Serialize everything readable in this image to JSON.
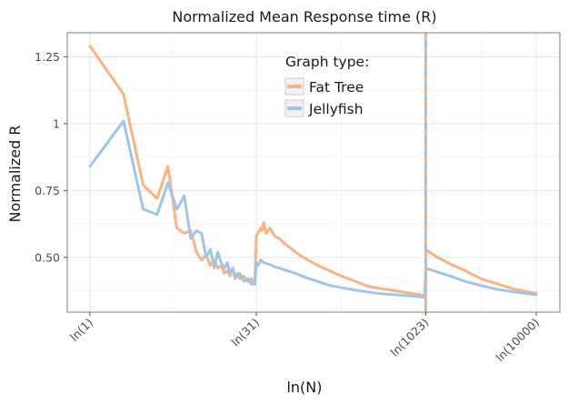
{
  "chart_data": {
    "type": "line",
    "title": "Normalized Mean Response time (R)",
    "xlabel": "ln(N)",
    "ylabel": "Normalized R",
    "x_scale": "log",
    "xlim": [
      1,
      10000
    ],
    "ylim": [
      0.295,
      1.34
    ],
    "x_ticks": [
      {
        "value": 1,
        "label": "ln(1)"
      },
      {
        "value": 31,
        "label": "ln(31)"
      },
      {
        "value": 1023,
        "label": "ln(1023)"
      },
      {
        "value": 10000,
        "label": "ln(10000)"
      }
    ],
    "y_ticks": [
      {
        "value": 0.5,
        "label": "0.50"
      },
      {
        "value": 0.75,
        "label": "0.75"
      },
      {
        "value": 1,
        "label": "1"
      },
      {
        "value": 1.25,
        "label": "1.25"
      }
    ],
    "grid": true,
    "legend": {
      "title": "Graph type:",
      "position": "top-center-inside"
    },
    "series": [
      {
        "name": "Fat Tree",
        "color": "#fcb380",
        "points": [
          [
            1,
            1.29
          ],
          [
            2,
            1.11
          ],
          [
            3,
            0.77
          ],
          [
            4,
            0.72
          ],
          [
            5,
            0.84
          ],
          [
            6,
            0.61
          ],
          [
            7,
            0.59
          ],
          [
            8,
            0.6
          ],
          [
            9,
            0.52
          ],
          [
            10,
            0.49
          ],
          [
            11,
            0.51
          ],
          [
            12,
            0.47
          ],
          [
            13,
            0.49
          ],
          [
            14,
            0.46
          ],
          [
            15,
            0.47
          ],
          [
            16,
            0.44
          ],
          [
            17,
            0.45
          ],
          [
            18,
            0.43
          ],
          [
            19,
            0.46
          ],
          [
            20,
            0.43
          ],
          [
            21,
            0.44
          ],
          [
            22,
            0.42
          ],
          [
            24,
            0.43
          ],
          [
            26,
            0.41
          ],
          [
            28,
            0.42
          ],
          [
            30,
            0.4
          ],
          [
            31,
            0.58
          ],
          [
            32,
            0.59
          ],
          [
            34,
            0.61
          ],
          [
            35,
            0.6
          ],
          [
            36,
            0.63
          ],
          [
            38,
            0.59
          ],
          [
            41,
            0.61
          ],
          [
            45,
            0.58
          ],
          [
            50,
            0.57
          ],
          [
            56,
            0.55
          ],
          [
            65,
            0.53
          ],
          [
            75,
            0.51
          ],
          [
            90,
            0.49
          ],
          [
            110,
            0.47
          ],
          [
            140,
            0.45
          ],
          [
            180,
            0.43
          ],
          [
            240,
            0.41
          ],
          [
            320,
            0.39
          ],
          [
            450,
            0.38
          ],
          [
            650,
            0.37
          ],
          [
            900,
            0.36
          ],
          [
            1020,
            0.355
          ],
          [
            1023,
            0.53
          ],
          [
            1100,
            0.52
          ],
          [
            1300,
            0.5
          ],
          [
            1700,
            0.475
          ],
          [
            2300,
            0.45
          ],
          [
            3200,
            0.42
          ],
          [
            4500,
            0.4
          ],
          [
            6500,
            0.38
          ],
          [
            10000,
            0.365
          ]
        ]
      },
      {
        "name": "Jellyfish",
        "color": "#9fc5ec",
        "points": [
          [
            1,
            0.84
          ],
          [
            2,
            1.01
          ],
          [
            3,
            0.68
          ],
          [
            4,
            0.66
          ],
          [
            5,
            0.78
          ],
          [
            6,
            0.68
          ],
          [
            7,
            0.73
          ],
          [
            8,
            0.57
          ],
          [
            9,
            0.6
          ],
          [
            10,
            0.59
          ],
          [
            11,
            0.5
          ],
          [
            12,
            0.53
          ],
          [
            13,
            0.46
          ],
          [
            14,
            0.52
          ],
          [
            15,
            0.48
          ],
          [
            16,
            0.46
          ],
          [
            17,
            0.48
          ],
          [
            18,
            0.44
          ],
          [
            19,
            0.46
          ],
          [
            20,
            0.42
          ],
          [
            21,
            0.43
          ],
          [
            22,
            0.44
          ],
          [
            24,
            0.41
          ],
          [
            26,
            0.42
          ],
          [
            28,
            0.4
          ],
          [
            30,
            0.4
          ],
          [
            31,
            0.48
          ],
          [
            32,
            0.47
          ],
          [
            34,
            0.49
          ],
          [
            36,
            0.48
          ],
          [
            40,
            0.475
          ],
          [
            45,
            0.465
          ],
          [
            50,
            0.46
          ],
          [
            58,
            0.45
          ],
          [
            70,
            0.44
          ],
          [
            85,
            0.425
          ],
          [
            110,
            0.41
          ],
          [
            140,
            0.395
          ],
          [
            190,
            0.385
          ],
          [
            260,
            0.375
          ],
          [
            380,
            0.365
          ],
          [
            550,
            0.36
          ],
          [
            800,
            0.355
          ],
          [
            1000,
            0.35
          ],
          [
            1023,
            0.46
          ],
          [
            1100,
            0.455
          ],
          [
            1300,
            0.445
          ],
          [
            1700,
            0.43
          ],
          [
            2300,
            0.41
          ],
          [
            3200,
            0.395
          ],
          [
            4500,
            0.38
          ],
          [
            6500,
            0.37
          ],
          [
            10000,
            0.36
          ]
        ]
      }
    ],
    "annotations": [
      {
        "type": "vline",
        "x": 1023,
        "style": "dashed",
        "colors": [
          "#fcb380",
          "#9fc5ec"
        ]
      }
    ]
  }
}
